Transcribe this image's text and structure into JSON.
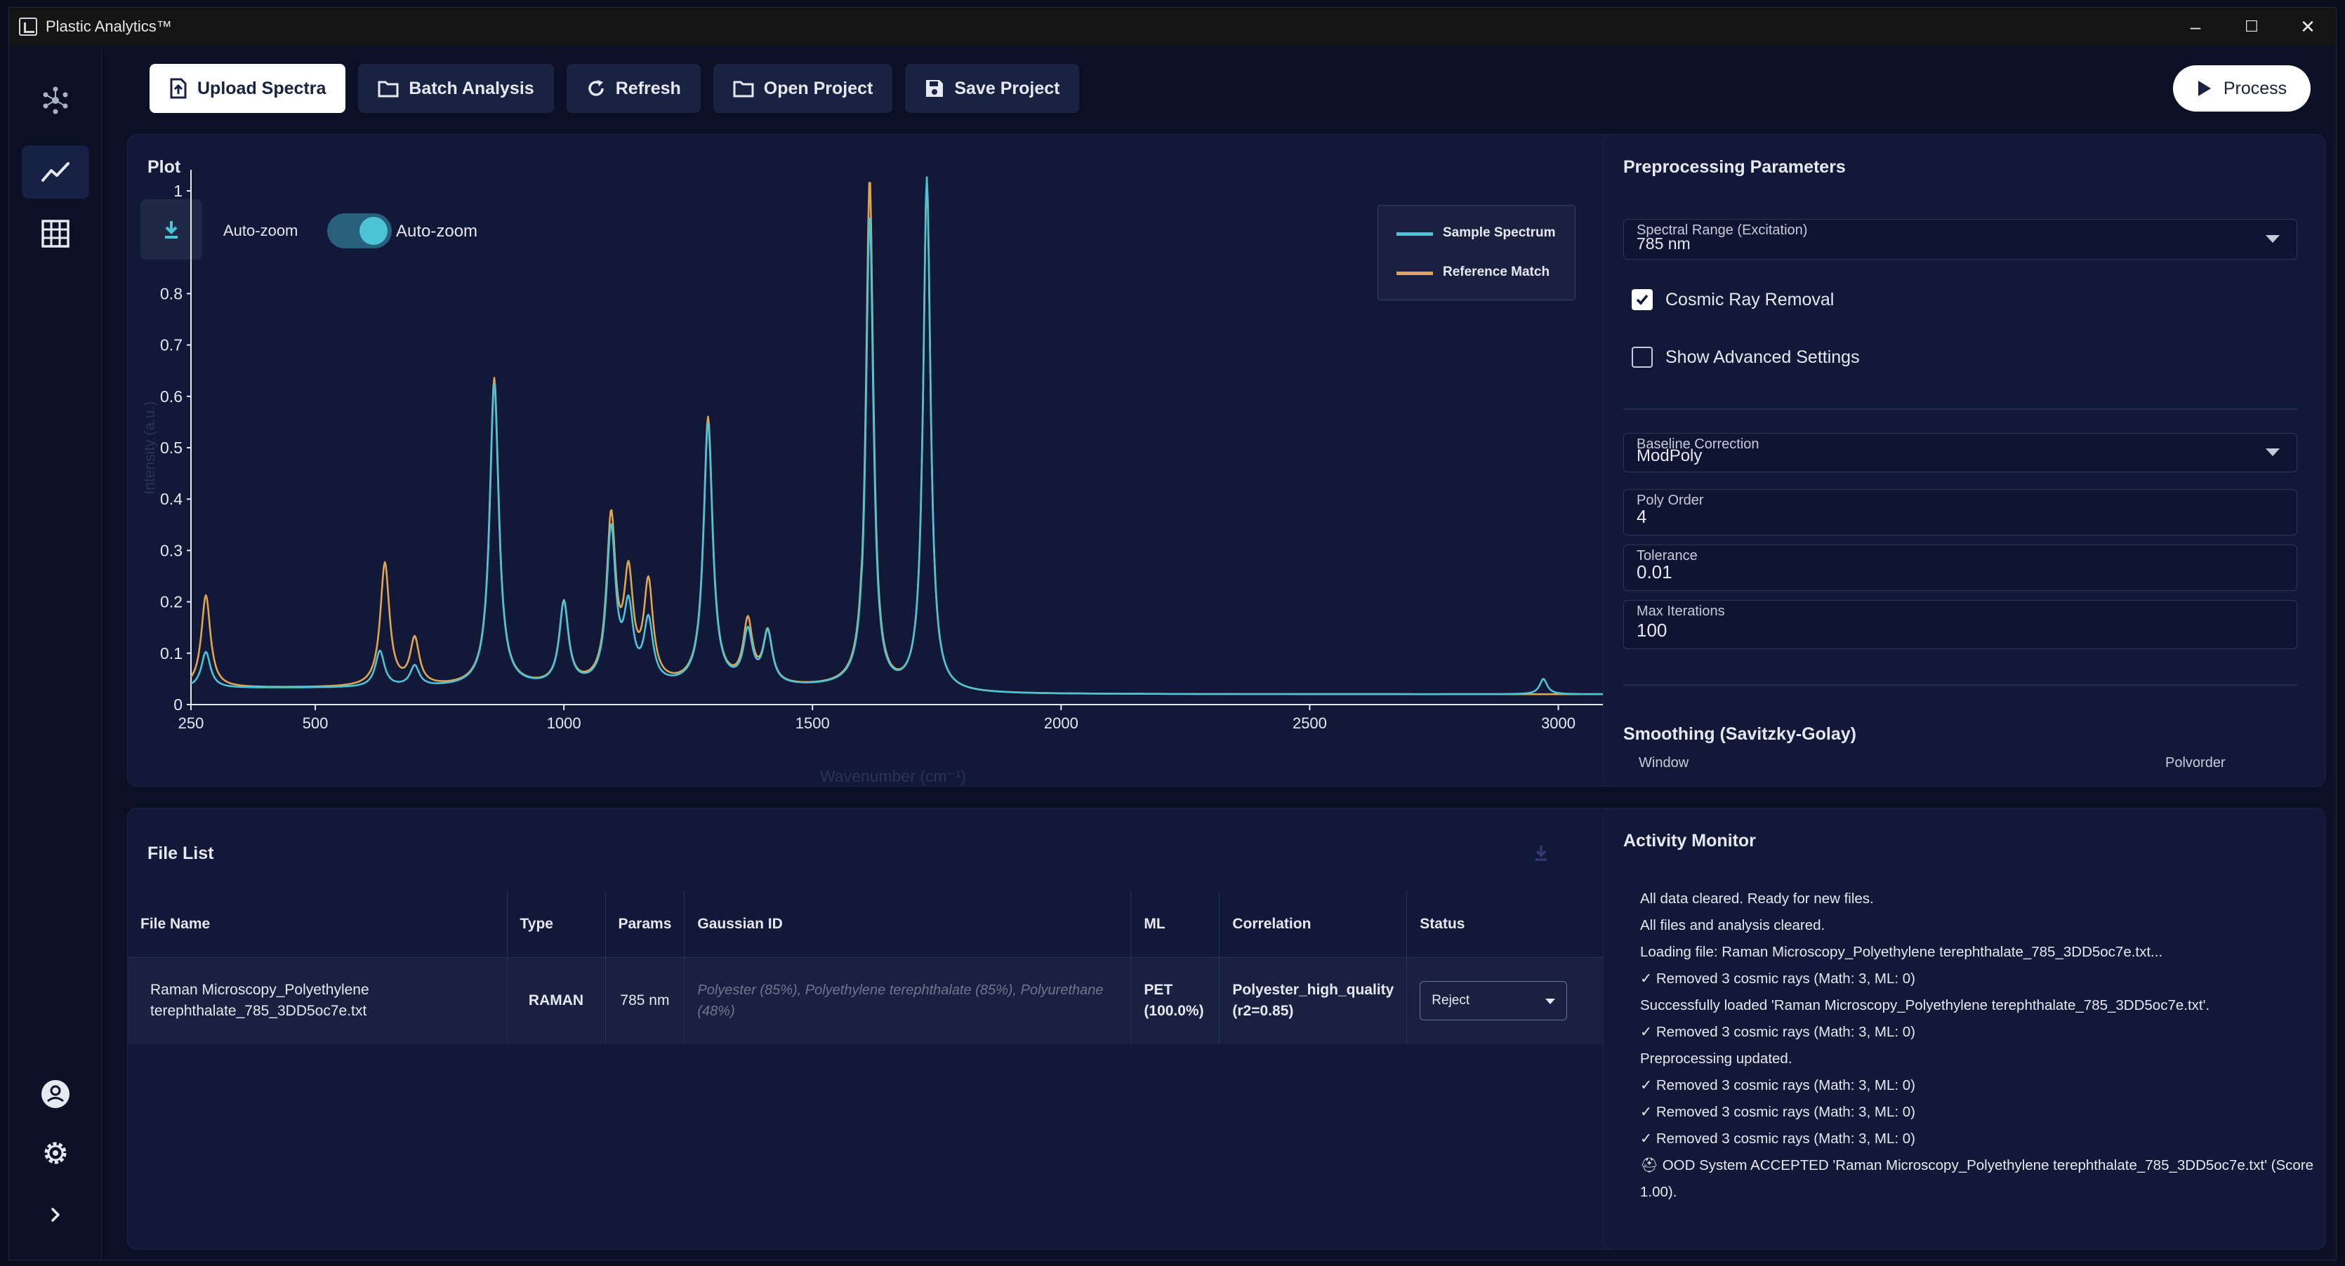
{
  "window": {
    "title": "Plastic Analytics™",
    "minimize_label": "–",
    "maximize_label": "☐",
    "close_label": "✕"
  },
  "sidebar": {
    "items": [
      {
        "icon": "cluster-logo-icon"
      },
      {
        "icon": "chart-line-icon",
        "active": true
      },
      {
        "icon": "grid-icon"
      },
      {
        "icon": "user-icon"
      },
      {
        "icon": "gear-icon"
      },
      {
        "icon": "chevron-right-icon"
      }
    ]
  },
  "toolbar": {
    "upload_label": "Upload Spectra",
    "batch_label": "Batch Analysis",
    "refresh_label": "Refresh",
    "open_label": "Open Project",
    "save_label": "Save Project",
    "process_label": "Process"
  },
  "plot": {
    "title": "Plot",
    "autozoom_label_1": "Auto-zoom",
    "autozoom_label_2": "Auto-zoom",
    "autozoom_on": true,
    "legend": [
      "Sample Spectrum",
      "Reference Match"
    ],
    "colors": {
      "sample": "#4cc4d6",
      "reference": "#e0a553",
      "axis": "#ffffff"
    }
  },
  "chart_data": {
    "type": "line",
    "xlabel": "Wavenumber (cm⁻¹)",
    "ylabel": "Intensity (a.u.)",
    "xlim": [
      250,
      3300
    ],
    "ylim": [
      0,
      1
    ],
    "x_ticks": [
      "250",
      "500",
      "1000",
      "1500",
      "2000",
      "2500",
      "3000"
    ],
    "y_ticks": [
      "0",
      "0.1",
      "0.2",
      "0.3",
      "0.4",
      "0.5",
      "0.6",
      "0.7",
      "0.8",
      "1"
    ],
    "series": [
      {
        "name": "Sample Spectrum",
        "color": "#4cc4d6",
        "peaks": [
          [
            280,
            0.07
          ],
          [
            630,
            0.07
          ],
          [
            700,
            0.04
          ],
          [
            860,
            0.59
          ],
          [
            1000,
            0.16
          ],
          [
            1095,
            0.3
          ],
          [
            1130,
            0.14
          ],
          [
            1170,
            0.12
          ],
          [
            1290,
            0.51
          ],
          [
            1370,
            0.1
          ],
          [
            1410,
            0.1
          ],
          [
            1615,
            0.93
          ],
          [
            1730,
            1.0
          ],
          [
            2970,
            0.03
          ]
        ]
      },
      {
        "name": "Reference Match",
        "color": "#e0a553",
        "peaks": [
          [
            280,
            0.18
          ],
          [
            640,
            0.24
          ],
          [
            700,
            0.09
          ],
          [
            860,
            0.6
          ],
          [
            1000,
            0.16
          ],
          [
            1095,
            0.32
          ],
          [
            1130,
            0.2
          ],
          [
            1170,
            0.19
          ],
          [
            1290,
            0.52
          ],
          [
            1370,
            0.12
          ],
          [
            1410,
            0.1
          ],
          [
            1615,
            1.0
          ],
          [
            1730,
            0.99
          ]
        ]
      }
    ]
  },
  "params": {
    "title": "Preprocessing Parameters",
    "spectral_range_label": "Spectral Range (Excitation)",
    "spectral_range_value": "785 nm",
    "cosmic_ray_label": "Cosmic Ray Removal",
    "cosmic_ray_checked": true,
    "advanced_label": "Show Advanced Settings",
    "advanced_checked": false,
    "baseline_label": "Baseline Correction",
    "baseline_value": "ModPoly",
    "poly_order_label": "Poly Order",
    "poly_order_value": "4",
    "tolerance_label": "Tolerance",
    "tolerance_value": "0.01",
    "max_iter_label": "Max Iterations",
    "max_iter_value": "100",
    "smoothing_title": "Smoothing (Savitzky-Golay)",
    "window_label": "Window",
    "polyorder_label": "Polvorder"
  },
  "files": {
    "title": "File List",
    "columns": [
      "File Name",
      "Type",
      "Params",
      "Gaussian ID",
      "ML",
      "Correlation",
      "Status"
    ],
    "rows": [
      {
        "file_name": "Raman Microscopy_Polyethylene terephthalate_785_3DD5oc7e.txt",
        "type": "RAMAN",
        "params": "785 nm",
        "gaussian_id": "Polyester (85%), Polyethylene terephthalate (85%), Polyurethane (48%)",
        "ml": "PET (100.0%)",
        "correlation": "Polyester_high_quality (r2=0.85)",
        "status": "Reject"
      }
    ]
  },
  "activity": {
    "title": "Activity Monitor",
    "log": [
      "All data cleared. Ready for new files.",
      "All files and analysis cleared.",
      "Loading file: Raman Microscopy_Polyethylene terephthalate_785_3DD5oc7e.txt...",
      "✓ Removed 3 cosmic rays (Math: 3, ML: 0)",
      "Successfully loaded 'Raman Microscopy_Polyethylene terephthalate_785_3DD5oc7e.txt'.",
      "✓ Removed 3 cosmic rays (Math: 3, ML: 0)",
      "Preprocessing updated.",
      "✓ Removed 3 cosmic rays (Math: 3, ML: 0)",
      "✓ Removed 3 cosmic rays (Math: 3, ML: 0)",
      "✓ Removed 3 cosmic rays (Math: 3, ML: 0)",
      "⛑ OOD System ACCEPTED 'Raman Microscopy_Polyethylene terephthalate_785_3DD5oc7e.txt' (Score 1.00)."
    ]
  }
}
